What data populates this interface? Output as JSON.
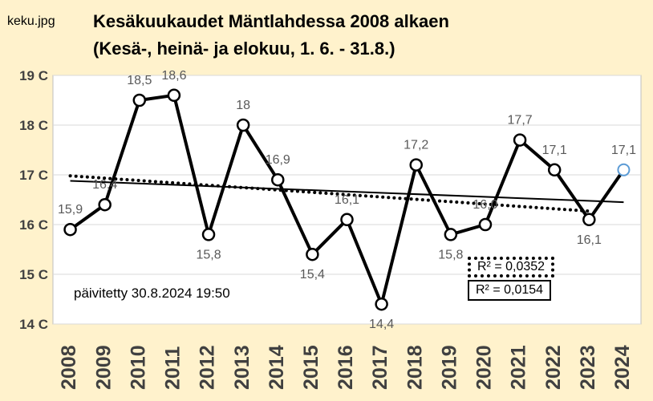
{
  "corner_label": "keku.jpg",
  "chart_data": {
    "type": "line",
    "title": "Kesäkuukaudet Mäntlahdessa 2008 alkaen",
    "subtitle": "(Kesä-, heinä- ja elokuu, 1. 6. - 31.8.)",
    "categories": [
      "2008",
      "2009",
      "2010",
      "2011",
      "2012",
      "2013",
      "2014",
      "2015",
      "2016",
      "2017",
      "2018",
      "2019",
      "2020",
      "2021",
      "2022",
      "2023",
      "2024"
    ],
    "values": [
      15.9,
      16.4,
      18.5,
      18.6,
      15.8,
      18.0,
      16.9,
      15.4,
      16.1,
      14.4,
      17.2,
      15.8,
      16.0,
      17.7,
      17.1,
      16.1,
      17.1
    ],
    "data_labels": [
      "15,9",
      "16,4",
      "18,5",
      "18,6",
      "15,8",
      "18",
      "16,9",
      "15,4",
      "16,1",
      "14,4",
      "17,2",
      "15,8",
      "16,0",
      "17,7",
      "17,1",
      "16,1",
      "17,1"
    ],
    "ylim": [
      14,
      19
    ],
    "yticks": [
      14,
      15,
      16,
      17,
      18,
      19
    ],
    "ytick_labels": [
      "14 C",
      "15 C",
      "16 C",
      "17 C",
      "18 C",
      "19 C"
    ],
    "grid": true,
    "trendlines": [
      {
        "style": "solid",
        "from": [
          2008,
          16.88
        ],
        "to": [
          2024,
          16.45
        ],
        "r2_label": "R² = 0,0154"
      },
      {
        "style": "dotted",
        "from": [
          2008,
          16.98
        ],
        "to": [
          2023,
          16.27
        ],
        "r2_label": "R² = 0,0352"
      }
    ],
    "colors": {
      "background": "#FFF2CC",
      "plot": "#FFFFFF",
      "line": "#000000",
      "last_marker": "#5B9BD5"
    }
  },
  "updated_note": "päivitetty 30.8.2024 19:50"
}
